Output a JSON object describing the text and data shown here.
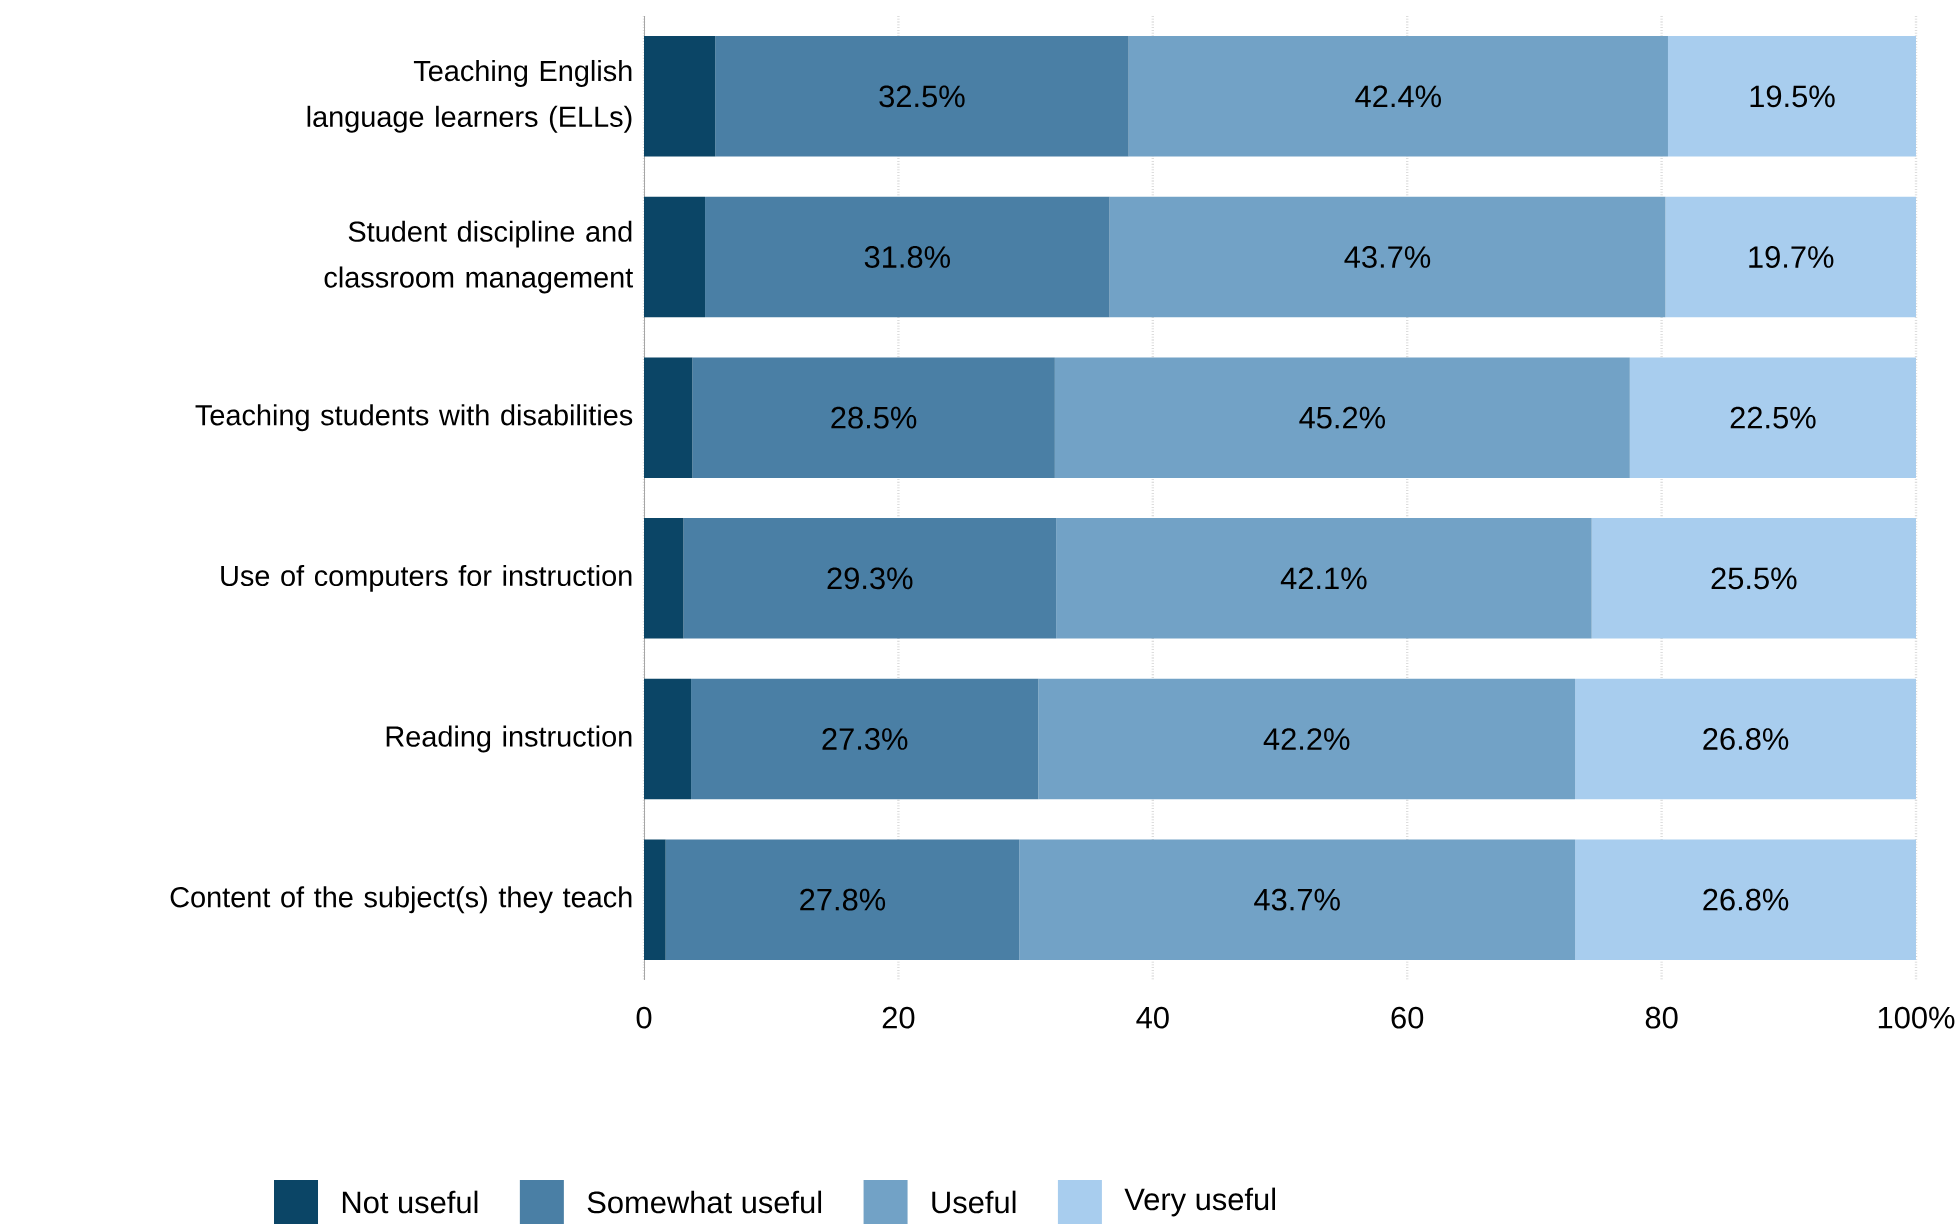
{
  "chart_data": {
    "type": "bar",
    "orientation": "horizontal",
    "stacked": true,
    "categories": [
      "Teaching English language learners (ELLs)",
      "Student discipline and classroom management",
      "Teaching students with disabilities",
      "Use of computers for instruction",
      "Reading instruction",
      "Content of the subject(s) they teach"
    ],
    "series": [
      {
        "name": "Not useful",
        "color": "#0b4566",
        "values": [
          5.6,
          4.8,
          3.8,
          3.1,
          3.7,
          1.7
        ]
      },
      {
        "name": "Somewhat useful",
        "color": "#4a7fa5",
        "values": [
          32.5,
          31.8,
          28.5,
          29.3,
          27.3,
          27.8
        ],
        "value_labels": [
          "32.5%",
          "31.8%",
          "28.5%",
          "29.3%",
          "27.3%",
          "27.8%"
        ]
      },
      {
        "name": "Useful",
        "color": "#72a2c6",
        "values": [
          42.4,
          43.7,
          45.2,
          42.1,
          42.2,
          43.7
        ],
        "value_labels": [
          "42.4%",
          "43.7%",
          "45.2%",
          "42.1%",
          "42.2%",
          "43.7%"
        ]
      },
      {
        "name": "Very useful",
        "color": "#a8cdee",
        "values": [
          19.5,
          19.7,
          22.5,
          25.5,
          26.8,
          26.8
        ],
        "value_labels": [
          "19.5%",
          "19.7%",
          "22.5%",
          "25.5%",
          "26.8%",
          "26.8%"
        ]
      }
    ],
    "xlim": [
      0,
      100
    ],
    "xticks": [
      0,
      20,
      40,
      60,
      80,
      {
        "value": 100,
        "label": "100%"
      }
    ],
    "grid": "x",
    "legend": "bottom"
  }
}
